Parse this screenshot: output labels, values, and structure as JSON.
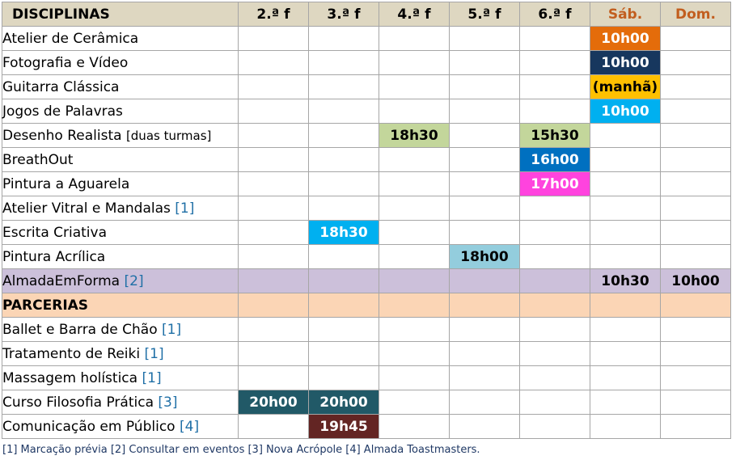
{
  "header": {
    "title": "DISCIPLINAS",
    "days": [
      "2.ª f",
      "3.ª f",
      "4.ª f",
      "5.ª f",
      "6.ª f",
      "Sáb.",
      "Dom."
    ]
  },
  "rows": [
    {
      "name": "Atelier de Cerâmica",
      "cells": [
        "",
        "",
        "",
        "",
        "",
        "10h00",
        ""
      ],
      "colors": [
        "",
        "",
        "",
        "",
        "",
        "#e46c0a",
        ""
      ]
    },
    {
      "name": "Fotografia e Vídeo",
      "cells": [
        "",
        "",
        "",
        "",
        "",
        "10h00",
        ""
      ],
      "colors": [
        "",
        "",
        "",
        "",
        "",
        "#17375e",
        ""
      ]
    },
    {
      "name": "Guitarra Clássica",
      "cells": [
        "",
        "",
        "",
        "",
        "",
        "(manhã)",
        ""
      ],
      "colors": [
        "",
        "",
        "",
        "",
        "",
        "#ffc000",
        ""
      ]
    },
    {
      "name": "Jogos de Palavras",
      "cells": [
        "",
        "",
        "",
        "",
        "",
        "10h00",
        ""
      ],
      "colors": [
        "",
        "",
        "",
        "",
        "",
        "#00b0f0",
        ""
      ]
    },
    {
      "name": "Desenho Realista",
      "note": "[duas turmas]",
      "cells": [
        "",
        "",
        "18h30",
        "",
        "15h30",
        "",
        ""
      ],
      "colors": [
        "",
        "",
        "#c3d69b",
        "",
        "#c3d69b",
        "",
        ""
      ]
    },
    {
      "name": "BreathOut",
      "cells": [
        "",
        "",
        "",
        "",
        "16h00",
        "",
        ""
      ],
      "colors": [
        "",
        "",
        "",
        "",
        "#0070c0",
        "",
        ""
      ]
    },
    {
      "name": "Pintura a Aguarela",
      "cells": [
        "",
        "",
        "",
        "",
        "17h00",
        "",
        ""
      ],
      "colors": [
        "",
        "",
        "",
        "",
        "#ff43de",
        "",
        ""
      ]
    },
    {
      "name": "Atelier Vitral e Mandalas",
      "ref": "1",
      "cells": [
        "",
        "",
        "",
        "",
        "",
        "",
        ""
      ],
      "colors": [
        "",
        "",
        "",
        "",
        "",
        "",
        ""
      ]
    },
    {
      "name": "Escrita Criativa",
      "cells": [
        "",
        "18h30",
        "",
        "",
        "",
        "",
        ""
      ],
      "colors": [
        "",
        "#00b0f0",
        "",
        "",
        "",
        "",
        ""
      ]
    },
    {
      "name": "Pintura Acrílica",
      "cells": [
        "",
        "",
        "",
        "18h00",
        "",
        "",
        ""
      ],
      "colors": [
        "",
        "",
        "",
        "#93cddd",
        "",
        "",
        ""
      ]
    }
  ],
  "almada": {
    "name": "AlmadaEmForma",
    "ref": "2",
    "cells": [
      "",
      "",
      "",
      "",
      "",
      "10h30",
      "10h00"
    ]
  },
  "parcerias_label": "PARCERIAS",
  "partner_rows": [
    {
      "name": "Ballet e Barra de Chão",
      "ref": "1",
      "cells": [
        "",
        "",
        "",
        "",
        "",
        "",
        ""
      ],
      "colors": [
        "",
        "",
        "",
        "",
        "",
        "",
        ""
      ]
    },
    {
      "name": "Tratamento de Reiki",
      "ref": "1",
      "cells": [
        "",
        "",
        "",
        "",
        "",
        "",
        ""
      ],
      "colors": [
        "",
        "",
        "",
        "",
        "",
        "",
        ""
      ]
    },
    {
      "name": "Massagem holística",
      "ref": "1",
      "cells": [
        "",
        "",
        "",
        "",
        "",
        "",
        ""
      ],
      "colors": [
        "",
        "",
        "",
        "",
        "",
        "",
        ""
      ]
    },
    {
      "name": "Curso Filosofia Prática",
      "ref": "3",
      "cells": [
        "20h00",
        "20h00",
        "",
        "",
        "",
        "",
        ""
      ],
      "colors": [
        "#215967",
        "#215967",
        "",
        "",
        "",
        "",
        ""
      ]
    },
    {
      "name": "Comunicação em Público",
      "ref": "4",
      "cells": [
        "",
        "19h45",
        "",
        "",
        "",
        "",
        ""
      ],
      "colors": [
        "",
        "#632523",
        "",
        "",
        "",
        "",
        ""
      ]
    }
  ],
  "colors": {
    "header_bg": "#ded7c1",
    "weekend_text": "#c25e1f",
    "almada_bg": "#ccc0da",
    "parcerias_bg": "#fbd5b5",
    "ref_text": "#1f6fa6"
  },
  "footnote": "[1] Marcação prévia [2] Consultar em eventos [3] Nova Acrópole [4] Almada Toastmasters."
}
